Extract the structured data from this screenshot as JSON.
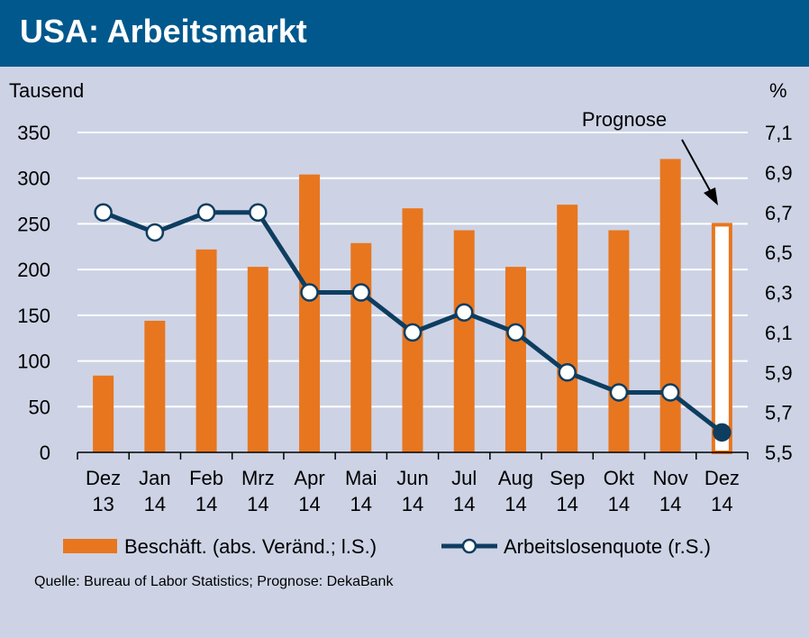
{
  "title": "USA: Arbeitsmarkt",
  "source": "Quelle: Bureau of Labor Statistics; Prognose:  DekaBank",
  "colors": {
    "header": "#00588c",
    "background": "#cdd3e5",
    "bar": "#e8761f",
    "line": "#0e3d60",
    "grid": "#ffffff"
  },
  "chart_data": {
    "type": "bar",
    "categories": [
      [
        "Dez",
        "13"
      ],
      [
        "Jan",
        "14"
      ],
      [
        "Feb",
        "14"
      ],
      [
        "Mrz",
        "14"
      ],
      [
        "Apr",
        "14"
      ],
      [
        "Mai",
        "14"
      ],
      [
        "Jun",
        "14"
      ],
      [
        "Jul",
        "14"
      ],
      [
        "Aug",
        "14"
      ],
      [
        "Sep",
        "14"
      ],
      [
        "Okt",
        "14"
      ],
      [
        "Nov",
        "14"
      ],
      [
        "Dez",
        "14"
      ]
    ],
    "left_axis": {
      "label": "Tausend",
      "ylim": [
        0,
        350
      ],
      "ticks": [
        "0",
        "50",
        "100",
        "150",
        "200",
        "250",
        "300",
        "350"
      ]
    },
    "right_axis": {
      "label": "%",
      "ylim": [
        5.5,
        7.1
      ],
      "ticks": [
        "5,5",
        "5,7",
        "5,9",
        "6,1",
        "6,3",
        "6,5",
        "6,7",
        "6,9",
        "7,1"
      ]
    },
    "grid": true,
    "series": [
      {
        "name": "Beschäft. (abs. Veränd.; l.S.)",
        "type": "bar",
        "axis": "left",
        "values": [
          84,
          144,
          222,
          203,
          304,
          229,
          267,
          243,
          203,
          271,
          243,
          321,
          251
        ],
        "forecast_index": 12
      },
      {
        "name": "Arbeitslosenquote (r.S.)",
        "type": "line",
        "axis": "right",
        "values": [
          6.7,
          6.6,
          6.7,
          6.7,
          6.3,
          6.3,
          6.1,
          6.2,
          6.1,
          5.9,
          5.8,
          5.8,
          5.6
        ],
        "forecast_index": 12
      }
    ],
    "annotation": "Prognose",
    "legend_position": "bottom"
  }
}
